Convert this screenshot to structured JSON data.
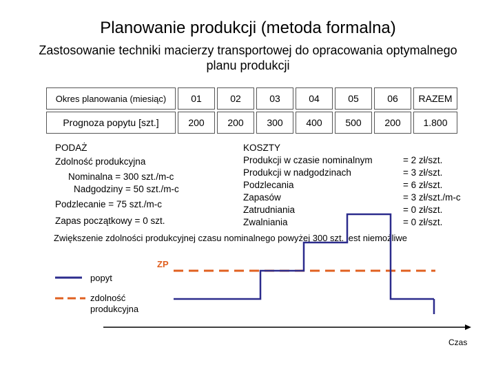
{
  "title": "Planowanie produkcji (metoda formalna)",
  "subtitle": "Zastosowanie techniki macierzy transportowej do  opracowania optymalnego planu produkcji",
  "table": {
    "period_label": "Okres planowania (miesiąc)",
    "periods": [
      "01",
      "02",
      "03",
      "04",
      "05",
      "06"
    ],
    "total_label": "RAZEM",
    "demand_label": "Prognoza popytu  [szt.]",
    "demand": [
      "200",
      "200",
      "300",
      "400",
      "500",
      "200"
    ],
    "demand_total": "1.800"
  },
  "supply": {
    "heading": "PODAŻ",
    "capacity_heading": "Zdolność produkcyjna",
    "nominal": "Nominalna  = 300 szt./m-c",
    "overtime": "Nadgodziny =  50 szt./m-c",
    "subcontract": "Podzlecanie   =   75 szt./m-c",
    "initial_stock": "Zapas początkowy = 0  szt."
  },
  "costs": {
    "heading": "KOSZTY",
    "items": [
      {
        "label": "Produkcji w czasie nominalnym",
        "value": "= 2 zł/szt."
      },
      {
        "label": "Produkcji w nadgodzinach",
        "value": "= 3 zł/szt."
      },
      {
        "label": "Podzlecania",
        "value": "= 6 zł/szt."
      },
      {
        "label": "Zapasów",
        "value": "= 3 zł/szt./m-c"
      },
      {
        "label": "Zatrudniania",
        "value": "= 0 zł/szt."
      },
      {
        "label": "Zwalniania",
        "value": "= 0 zł/szt."
      }
    ]
  },
  "note": "Zwiększenie zdolności produkcyjnej czasu nominalnego powyżej 300 szt. jest niemożliwe",
  "legend": {
    "demand_label": "popyt",
    "capacity_label_1": "zdolność",
    "capacity_label_2": "produkcyjna"
  },
  "diagram": {
    "zp_label": "ZP",
    "axis_label": "Czas",
    "demand_color": "#2b2b8c",
    "capacity_color": "#e06020",
    "demand_levels": [
      200,
      200,
      300,
      400,
      500,
      200
    ],
    "capacity_level": 300
  }
}
